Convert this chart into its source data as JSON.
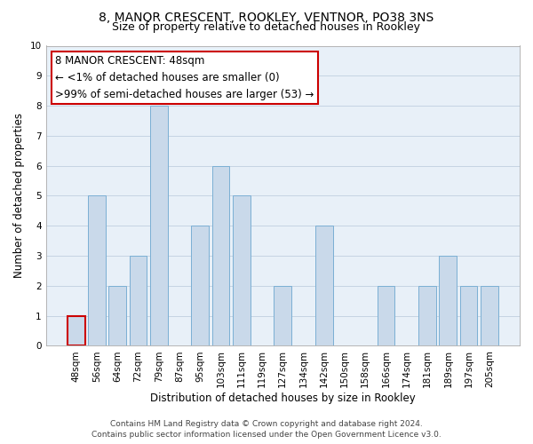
{
  "title": "8, MANOR CRESCENT, ROOKLEY, VENTNOR, PO38 3NS",
  "subtitle": "Size of property relative to detached houses in Rookley",
  "xlabel": "Distribution of detached houses by size in Rookley",
  "ylabel": "Number of detached properties",
  "bar_labels": [
    "48sqm",
    "56sqm",
    "64sqm",
    "72sqm",
    "79sqm",
    "87sqm",
    "95sqm",
    "103sqm",
    "111sqm",
    "119sqm",
    "127sqm",
    "134sqm",
    "142sqm",
    "150sqm",
    "158sqm",
    "166sqm",
    "174sqm",
    "181sqm",
    "189sqm",
    "197sqm",
    "205sqm"
  ],
  "bar_values": [
    1,
    5,
    2,
    3,
    8,
    0,
    4,
    6,
    5,
    0,
    2,
    0,
    4,
    0,
    0,
    2,
    0,
    2,
    3,
    2,
    2
  ],
  "bar_color": "#c9d9ea",
  "bar_edge_color": "#7bafd4",
  "highlight_index": 0,
  "highlight_edge_color": "#cc0000",
  "ylim": [
    0,
    10
  ],
  "yticks": [
    0,
    1,
    2,
    3,
    4,
    5,
    6,
    7,
    8,
    9,
    10
  ],
  "annotation_text_line1": "8 MANOR CRESCENT: 48sqm",
  "annotation_text_line2": "← <1% of detached houses are smaller (0)",
  "annotation_text_line3": ">99% of semi-detached houses are larger (53) →",
  "annotation_box_facecolor": "#ffffff",
  "annotation_box_edgecolor": "#cc0000",
  "footer_line1": "Contains HM Land Registry data © Crown copyright and database right 2024.",
  "footer_line2": "Contains public sector information licensed under the Open Government Licence v3.0.",
  "bg_color": "#ffffff",
  "plot_bg_color": "#e8f0f8",
  "grid_color": "#c0cfe0",
  "title_fontsize": 10,
  "subtitle_fontsize": 9,
  "axis_label_fontsize": 8.5,
  "tick_fontsize": 7.5,
  "annotation_fontsize": 8.5,
  "footer_fontsize": 6.5
}
